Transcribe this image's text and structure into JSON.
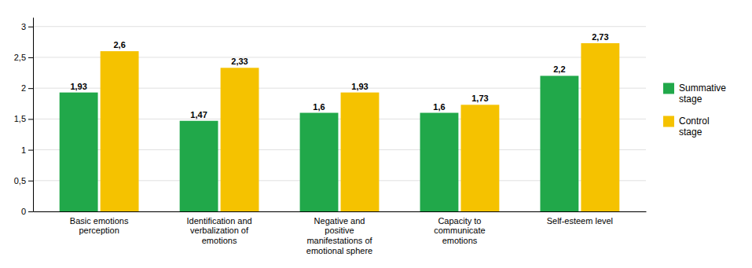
{
  "chart_data": {
    "type": "bar",
    "categories": [
      "Basic emotions\nperception",
      "Identification and\nverbalization of\nemotions",
      "Negative and\npositive\nmanifestations of\nemotional sphere",
      "Capacity to\ncommunicate\nemotions",
      "Self-esteem level"
    ],
    "series": [
      {
        "name": "Summative\nstage",
        "color": "#21a84a",
        "values": [
          1.93,
          1.47,
          1.6,
          1.6,
          2.2
        ],
        "value_labels": [
          "1,93",
          "1,47",
          "1,6",
          "1,6",
          "2,2"
        ]
      },
      {
        "name": "Control\nstage",
        "color": "#f5c200",
        "values": [
          2.6,
          2.33,
          1.93,
          1.73,
          2.73
        ],
        "value_labels": [
          "2,6",
          "2,33",
          "1,93",
          "1,73",
          "2,73"
        ]
      }
    ],
    "ylim": [
      0,
      3.15
    ],
    "yticks": [
      0,
      {
        "value": 0.5,
        "label": "0,5"
      },
      1,
      {
        "value": 1.5,
        "label": "1,5"
      },
      2,
      {
        "value": 2.5,
        "label": "2,5"
      },
      3
    ],
    "grid": true,
    "legend": "right",
    "data_labels": true
  }
}
